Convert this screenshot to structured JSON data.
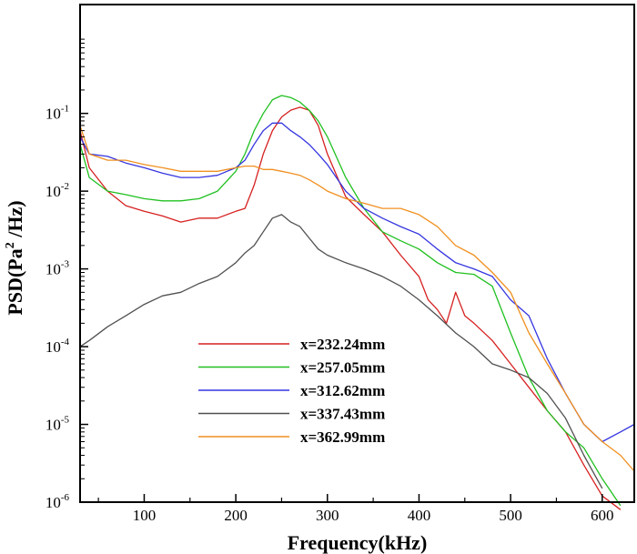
{
  "chart_data": {
    "type": "line",
    "xlabel": "Frequency(kHz)",
    "ylabel": "PSD(Pa² /Hz)",
    "ylabel_parts": {
      "prefix": "PSD(Pa",
      "sup": "2",
      "suffix": " /Hz)"
    },
    "xlim": [
      30,
      635
    ],
    "ylim_log10": [
      -6,
      0.4
    ],
    "y_scale": "log",
    "x_ticks": [
      100,
      200,
      300,
      400,
      500,
      600
    ],
    "x_tick_labels": [
      "100",
      "200",
      "300",
      "400",
      "500",
      "600"
    ],
    "y_ticks_exp": [
      -6,
      -5,
      -4,
      -3,
      -2,
      -1
    ],
    "y_tick_base": "10",
    "y_tick_exp_labels": [
      "-6",
      "-5",
      "-4",
      "-3",
      "-2",
      "-1"
    ],
    "grid": false,
    "legend_position": "lower-left",
    "series": [
      {
        "name": "x=232.24mm",
        "color": "#d62020",
        "x": [
          30,
          40,
          60,
          80,
          100,
          120,
          140,
          160,
          180,
          200,
          210,
          220,
          230,
          240,
          250,
          260,
          270,
          280,
          290,
          300,
          320,
          340,
          360,
          380,
          400,
          410,
          420,
          430,
          440,
          450,
          460,
          480,
          500,
          520,
          540,
          560,
          580,
          600,
          620
        ],
        "y": [
          0.06,
          0.02,
          0.01,
          0.0065,
          0.0055,
          0.0048,
          0.004,
          0.0045,
          0.0045,
          0.0055,
          0.006,
          0.012,
          0.03,
          0.06,
          0.09,
          0.11,
          0.12,
          0.11,
          0.07,
          0.03,
          0.0085,
          0.005,
          0.003,
          0.0015,
          0.0008,
          0.0004,
          0.0003,
          0.0002,
          0.0005,
          0.00025,
          0.0002,
          0.00012,
          6e-05,
          3e-05,
          1.5e-05,
          8e-06,
          3e-06,
          1.2e-06,
          8e-07
        ]
      },
      {
        "name": "x=257.05mm",
        "color": "#20c020",
        "x": [
          30,
          40,
          60,
          80,
          100,
          120,
          140,
          160,
          180,
          200,
          210,
          220,
          230,
          240,
          250,
          260,
          270,
          280,
          290,
          300,
          320,
          340,
          360,
          380,
          400,
          420,
          440,
          460,
          480,
          500,
          520,
          540,
          560,
          580,
          600,
          620
        ],
        "y": [
          0.04,
          0.015,
          0.01,
          0.009,
          0.008,
          0.0075,
          0.0075,
          0.008,
          0.01,
          0.018,
          0.03,
          0.06,
          0.1,
          0.15,
          0.17,
          0.16,
          0.14,
          0.11,
          0.08,
          0.05,
          0.015,
          0.006,
          0.003,
          0.0023,
          0.0018,
          0.0012,
          0.0009,
          0.00085,
          0.0006,
          0.00015,
          4e-05,
          1.5e-05,
          8e-06,
          5e-06,
          2e-06,
          9e-07
        ]
      },
      {
        "name": "x=312.62mm",
        "color": "#3535e0",
        "x": [
          30,
          40,
          60,
          80,
          100,
          120,
          140,
          160,
          180,
          200,
          210,
          220,
          230,
          240,
          250,
          260,
          270,
          280,
          290,
          300,
          320,
          340,
          360,
          380,
          400,
          420,
          440,
          460,
          480,
          500,
          520,
          540,
          560,
          580,
          600,
          620,
          635
        ],
        "y": [
          0.05,
          0.03,
          0.028,
          0.023,
          0.02,
          0.017,
          0.015,
          0.015,
          0.016,
          0.02,
          0.025,
          0.04,
          0.06,
          0.075,
          0.075,
          0.06,
          0.05,
          0.04,
          0.03,
          0.022,
          0.01,
          0.006,
          0.0045,
          0.0035,
          0.0028,
          0.0018,
          0.0012,
          0.001,
          0.0008,
          0.0004,
          0.00025,
          7e-05,
          2.5e-05,
          1e-05,
          6e-06,
          8e-06,
          1e-05
        ]
      },
      {
        "name": "x=337.43mm",
        "color": "#505050",
        "x": [
          30,
          40,
          60,
          80,
          100,
          120,
          140,
          160,
          180,
          200,
          210,
          220,
          230,
          240,
          250,
          260,
          270,
          280,
          290,
          300,
          320,
          340,
          360,
          380,
          400,
          420,
          440,
          460,
          480,
          500,
          520,
          540,
          560,
          580,
          600
        ],
        "y": [
          0.0001,
          0.00012,
          0.00018,
          0.00025,
          0.00035,
          0.00045,
          0.0005,
          0.00065,
          0.0008,
          0.0012,
          0.0016,
          0.002,
          0.003,
          0.0045,
          0.005,
          0.004,
          0.0035,
          0.0025,
          0.0018,
          0.0015,
          0.0012,
          0.001,
          0.0008,
          0.0006,
          0.0004,
          0.00025,
          0.00015,
          0.0001,
          6e-05,
          5e-05,
          4e-05,
          2.5e-05,
          1.2e-05,
          4e-06,
          1.5e-06
        ]
      },
      {
        "name": "x=362.99mm",
        "color": "#f09020",
        "x": [
          30,
          40,
          60,
          80,
          100,
          120,
          140,
          160,
          180,
          200,
          210,
          220,
          230,
          240,
          250,
          260,
          270,
          280,
          290,
          300,
          320,
          340,
          360,
          380,
          400,
          420,
          440,
          460,
          480,
          500,
          520,
          540,
          560,
          580,
          600,
          620,
          635
        ],
        "y": [
          0.07,
          0.03,
          0.025,
          0.025,
          0.022,
          0.02,
          0.018,
          0.018,
          0.018,
          0.02,
          0.021,
          0.021,
          0.019,
          0.019,
          0.018,
          0.017,
          0.016,
          0.014,
          0.012,
          0.01,
          0.008,
          0.007,
          0.006,
          0.006,
          0.005,
          0.0035,
          0.002,
          0.0015,
          0.0009,
          0.0005,
          0.00015,
          6e-05,
          2.5e-05,
          1e-05,
          6e-06,
          4e-06,
          2.5e-06
        ]
      }
    ]
  }
}
